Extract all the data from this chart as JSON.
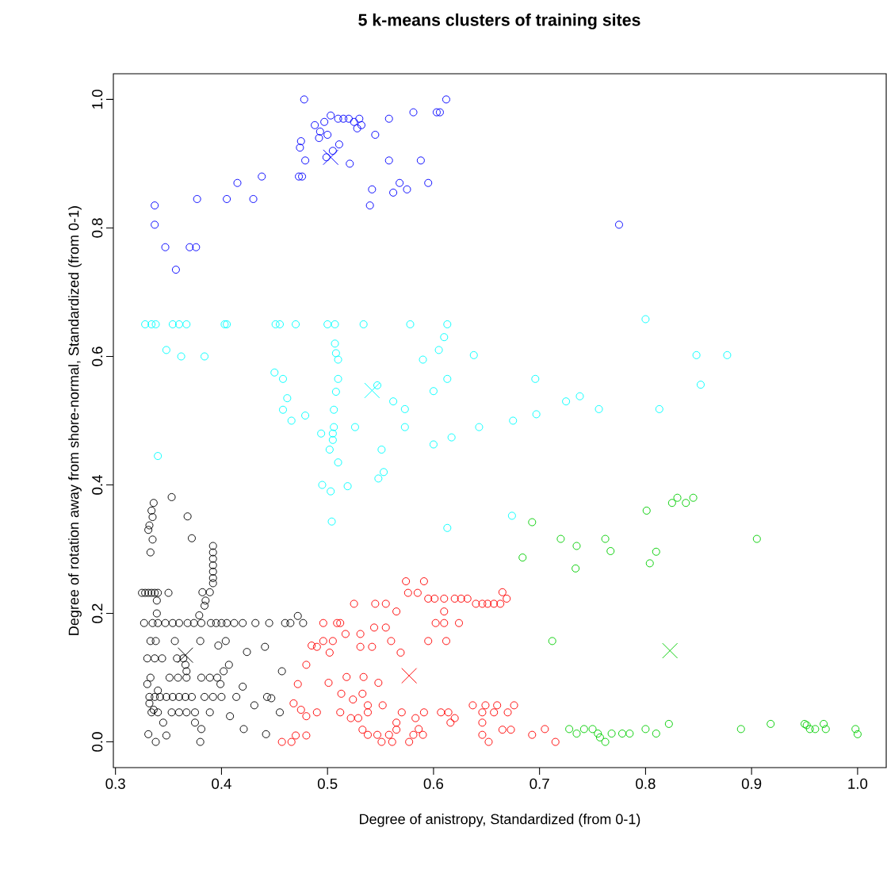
{
  "chart_data": {
    "type": "scatter",
    "title": "5 k-means clusters of training sites",
    "xlabel": "Degree of anistropy, Standardized (from 0-1)",
    "ylabel": "Degree of rotation away from shore-normal, Standardized (from 0-1)",
    "xlim": [
      0.298,
      1.027
    ],
    "ylim": [
      -0.04,
      1.04
    ],
    "xticks": [
      0.3,
      0.4,
      0.5,
      0.6,
      0.7,
      0.8,
      0.9,
      {
        "value": 1,
        "label": "1.0"
      }
    ],
    "yticks": [
      {
        "value": 0,
        "label": "0.0"
      },
      0.2,
      0.4,
      0.6,
      0.8,
      {
        "value": 1,
        "label": "1.0"
      }
    ],
    "grid": false,
    "series": [
      {
        "color": "#000000",
        "marker": "circle",
        "x": [
          0.353,
          0.336,
          0.334,
          0.335,
          0.332,
          0.331,
          0.335,
          0.333,
          0.368,
          0.372,
          0.392,
          0.392,
          0.392,
          0.392,
          0.392,
          0.392,
          0.392,
          0.389,
          0.382,
          0.385,
          0.384,
          0.379,
          0.325,
          0.328,
          0.331,
          0.334,
          0.337,
          0.34,
          0.35,
          0.339,
          0.339,
          0.327,
          0.335,
          0.34,
          0.347,
          0.354,
          0.36,
          0.368,
          0.374,
          0.381,
          0.39,
          0.395,
          0.4,
          0.405,
          0.412,
          0.42,
          0.432,
          0.445,
          0.46,
          0.465,
          0.472,
          0.477,
          0.333,
          0.338,
          0.356,
          0.38,
          0.397,
          0.404,
          0.424,
          0.441,
          0.33,
          0.337,
          0.344,
          0.358,
          0.364,
          0.366,
          0.367,
          0.333,
          0.351,
          0.359,
          0.367,
          0.381,
          0.389,
          0.396,
          0.402,
          0.407,
          0.399,
          0.332,
          0.337,
          0.342,
          0.348,
          0.354,
          0.36,
          0.366,
          0.372,
          0.384,
          0.392,
          0.4,
          0.414,
          0.42,
          0.443,
          0.447,
          0.431,
          0.455,
          0.457,
          0.334,
          0.34,
          0.353,
          0.36,
          0.367,
          0.375,
          0.389,
          0.408,
          0.375,
          0.381,
          0.421,
          0.442,
          0.331,
          0.338,
          0.348,
          0.38,
          0.33,
          0.332,
          0.336,
          0.34,
          0.345
        ],
        "values": [
          0.381,
          0.372,
          0.36,
          0.35,
          0.337,
          0.33,
          0.315,
          0.295,
          0.351,
          0.317,
          0.305,
          0.295,
          0.285,
          0.275,
          0.265,
          0.255,
          0.247,
          0.233,
          0.233,
          0.22,
          0.212,
          0.197,
          0.232,
          0.232,
          0.232,
          0.232,
          0.232,
          0.232,
          0.232,
          0.22,
          0.2,
          0.185,
          0.185,
          0.185,
          0.185,
          0.185,
          0.185,
          0.185,
          0.185,
          0.185,
          0.185,
          0.185,
          0.185,
          0.185,
          0.185,
          0.185,
          0.185,
          0.185,
          0.185,
          0.185,
          0.196,
          0.185,
          0.157,
          0.157,
          0.157,
          0.157,
          0.15,
          0.157,
          0.14,
          0.148,
          0.13,
          0.13,
          0.13,
          0.13,
          0.13,
          0.12,
          0.11,
          0.1,
          0.1,
          0.1,
          0.1,
          0.1,
          0.1,
          0.1,
          0.11,
          0.12,
          0.09,
          0.07,
          0.07,
          0.07,
          0.07,
          0.07,
          0.07,
          0.07,
          0.07,
          0.07,
          0.07,
          0.07,
          0.07,
          0.086,
          0.07,
          0.068,
          0.057,
          0.046,
          0.11,
          0.046,
          0.046,
          0.046,
          0.046,
          0.046,
          0.046,
          0.046,
          0.04,
          0.03,
          0.02,
          0.02,
          0.012,
          0.012,
          0.0,
          0.01,
          0.0,
          0.09,
          0.06,
          0.05,
          0.08,
          0.03
        ]
      },
      {
        "color": "#ff0000",
        "marker": "circle",
        "x": [
          0.574,
          0.591,
          0.576,
          0.585,
          0.595,
          0.601,
          0.61,
          0.62,
          0.626,
          0.632,
          0.64,
          0.646,
          0.651,
          0.657,
          0.663,
          0.665,
          0.669,
          0.525,
          0.545,
          0.555,
          0.565,
          0.61,
          0.496,
          0.509,
          0.512,
          0.544,
          0.555,
          0.602,
          0.61,
          0.624,
          0.517,
          0.531,
          0.496,
          0.505,
          0.531,
          0.542,
          0.56,
          0.595,
          0.612,
          0.49,
          0.502,
          0.569,
          0.518,
          0.534,
          0.501,
          0.548,
          0.513,
          0.533,
          0.524,
          0.538,
          0.552,
          0.49,
          0.512,
          0.522,
          0.529,
          0.538,
          0.57,
          0.583,
          0.591,
          0.607,
          0.616,
          0.614,
          0.62,
          0.637,
          0.649,
          0.66,
          0.676,
          0.646,
          0.657,
          0.67,
          0.646,
          0.665,
          0.673,
          0.693,
          0.705,
          0.533,
          0.538,
          0.547,
          0.558,
          0.565,
          0.565,
          0.586,
          0.59,
          0.581,
          0.551,
          0.561,
          0.577,
          0.646,
          0.652,
          0.457,
          0.466,
          0.47,
          0.48,
          0.468,
          0.475,
          0.48,
          0.472,
          0.48,
          0.485,
          0.715
        ],
        "values": [
          0.25,
          0.25,
          0.232,
          0.232,
          0.223,
          0.223,
          0.223,
          0.223,
          0.223,
          0.223,
          0.215,
          0.215,
          0.215,
          0.215,
          0.215,
          0.233,
          0.223,
          0.215,
          0.215,
          0.215,
          0.203,
          0.203,
          0.185,
          0.185,
          0.185,
          0.178,
          0.178,
          0.185,
          0.185,
          0.185,
          0.168,
          0.168,
          0.157,
          0.157,
          0.148,
          0.148,
          0.157,
          0.157,
          0.157,
          0.148,
          0.139,
          0.139,
          0.101,
          0.101,
          0.092,
          0.092,
          0.075,
          0.075,
          0.066,
          0.057,
          0.057,
          0.046,
          0.046,
          0.037,
          0.037,
          0.046,
          0.046,
          0.037,
          0.046,
          0.046,
          0.03,
          0.046,
          0.037,
          0.057,
          0.057,
          0.057,
          0.057,
          0.046,
          0.046,
          0.046,
          0.03,
          0.019,
          0.019,
          0.011,
          0.02,
          0.019,
          0.011,
          0.011,
          0.011,
          0.03,
          0.019,
          0.02,
          0.011,
          0.011,
          0.0,
          0.0,
          0.0,
          0.011,
          0.0,
          0.0,
          0.0,
          0.01,
          0.01,
          0.06,
          0.05,
          0.04,
          0.09,
          0.12,
          0.15,
          0.0
        ]
      },
      {
        "color": "#00cd00",
        "marker": "circle",
        "x": [
          0.693,
          0.684,
          0.72,
          0.735,
          0.734,
          0.762,
          0.767,
          0.801,
          0.804,
          0.81,
          0.825,
          0.83,
          0.838,
          0.845,
          0.905,
          0.712,
          0.728,
          0.735,
          0.742,
          0.75,
          0.755,
          0.757,
          0.762,
          0.768,
          0.778,
          0.785,
          0.8,
          0.81,
          0.822,
          0.89,
          0.918,
          0.95,
          0.952,
          0.955,
          0.96,
          0.968,
          0.97,
          0.998,
          1.0
        ],
        "values": [
          0.342,
          0.287,
          0.316,
          0.305,
          0.27,
          0.316,
          0.297,
          0.36,
          0.278,
          0.296,
          0.372,
          0.38,
          0.372,
          0.38,
          0.316,
          0.157,
          0.02,
          0.013,
          0.02,
          0.02,
          0.013,
          0.007,
          0.0,
          0.013,
          0.013,
          0.013,
          0.02,
          0.013,
          0.028,
          0.02,
          0.028,
          0.028,
          0.026,
          0.02,
          0.02,
          0.028,
          0.02,
          0.02,
          0.012
        ]
      },
      {
        "color": "#0000ff",
        "marker": "circle",
        "x": [
          0.478,
          0.612,
          0.488,
          0.493,
          0.497,
          0.503,
          0.51,
          0.515,
          0.52,
          0.525,
          0.53,
          0.528,
          0.532,
          0.492,
          0.5,
          0.511,
          0.499,
          0.545,
          0.558,
          0.581,
          0.603,
          0.606,
          0.475,
          0.474,
          0.479,
          0.505,
          0.521,
          0.473,
          0.476,
          0.542,
          0.54,
          0.558,
          0.562,
          0.568,
          0.575,
          0.588,
          0.595,
          0.405,
          0.415,
          0.43,
          0.438,
          0.337,
          0.337,
          0.347,
          0.37,
          0.376,
          0.357,
          0.377,
          0.775
        ],
        "values": [
          1.0,
          1.0,
          0.96,
          0.95,
          0.965,
          0.975,
          0.97,
          0.97,
          0.97,
          0.965,
          0.97,
          0.955,
          0.96,
          0.94,
          0.945,
          0.93,
          0.91,
          0.945,
          0.97,
          0.98,
          0.98,
          0.98,
          0.935,
          0.925,
          0.905,
          0.92,
          0.9,
          0.88,
          0.88,
          0.86,
          0.835,
          0.905,
          0.855,
          0.87,
          0.86,
          0.905,
          0.87,
          0.845,
          0.87,
          0.845,
          0.88,
          0.835,
          0.805,
          0.77,
          0.77,
          0.77,
          0.735,
          0.845,
          0.805
        ]
      },
      {
        "color": "#00ffff",
        "marker": "circle",
        "x": [
          0.328,
          0.334,
          0.338,
          0.354,
          0.36,
          0.367,
          0.403,
          0.405,
          0.451,
          0.455,
          0.47,
          0.5,
          0.507,
          0.534,
          0.578,
          0.613,
          0.348,
          0.362,
          0.384,
          0.45,
          0.458,
          0.462,
          0.458,
          0.466,
          0.479,
          0.507,
          0.508,
          0.51,
          0.51,
          0.508,
          0.506,
          0.494,
          0.506,
          0.505,
          0.505,
          0.502,
          0.51,
          0.495,
          0.503,
          0.504,
          0.519,
          0.526,
          0.547,
          0.548,
          0.553,
          0.562,
          0.551,
          0.573,
          0.573,
          0.34,
          0.59,
          0.6,
          0.605,
          0.61,
          0.613,
          0.617,
          0.6,
          0.613,
          0.638,
          0.643,
          0.675,
          0.696,
          0.697,
          0.725,
          0.738,
          0.756,
          0.8,
          0.813,
          0.848,
          0.852,
          0.877,
          0.674
        ],
        "values": [
          0.65,
          0.65,
          0.65,
          0.65,
          0.65,
          0.65,
          0.65,
          0.65,
          0.65,
          0.65,
          0.65,
          0.65,
          0.65,
          0.65,
          0.65,
          0.65,
          0.61,
          0.6,
          0.6,
          0.575,
          0.565,
          0.535,
          0.517,
          0.5,
          0.508,
          0.62,
          0.605,
          0.595,
          0.565,
          0.545,
          0.517,
          0.48,
          0.49,
          0.48,
          0.47,
          0.455,
          0.435,
          0.4,
          0.39,
          0.343,
          0.398,
          0.49,
          0.555,
          0.41,
          0.42,
          0.53,
          0.455,
          0.518,
          0.49,
          0.445,
          0.595,
          0.546,
          0.61,
          0.63,
          0.565,
          0.474,
          0.463,
          0.333,
          0.602,
          0.49,
          0.5,
          0.565,
          0.51,
          0.53,
          0.538,
          0.518,
          0.658,
          0.518,
          0.602,
          0.556,
          0.602,
          0.352
        ]
      },
      {
        "color": "#000000",
        "marker": "cross",
        "x": [
          0.366
        ],
        "values": [
          0.135
        ]
      },
      {
        "color": "#ff0000",
        "marker": "cross",
        "x": [
          0.577
        ],
        "values": [
          0.103
        ]
      },
      {
        "color": "#00cd00",
        "marker": "cross",
        "x": [
          0.823
        ],
        "values": [
          0.142
        ]
      },
      {
        "color": "#0000ff",
        "marker": "cross",
        "x": [
          0.503
        ],
        "values": [
          0.91
        ]
      },
      {
        "color": "#00ffff",
        "marker": "cross",
        "x": [
          0.542
        ],
        "values": [
          0.547
        ]
      }
    ]
  }
}
